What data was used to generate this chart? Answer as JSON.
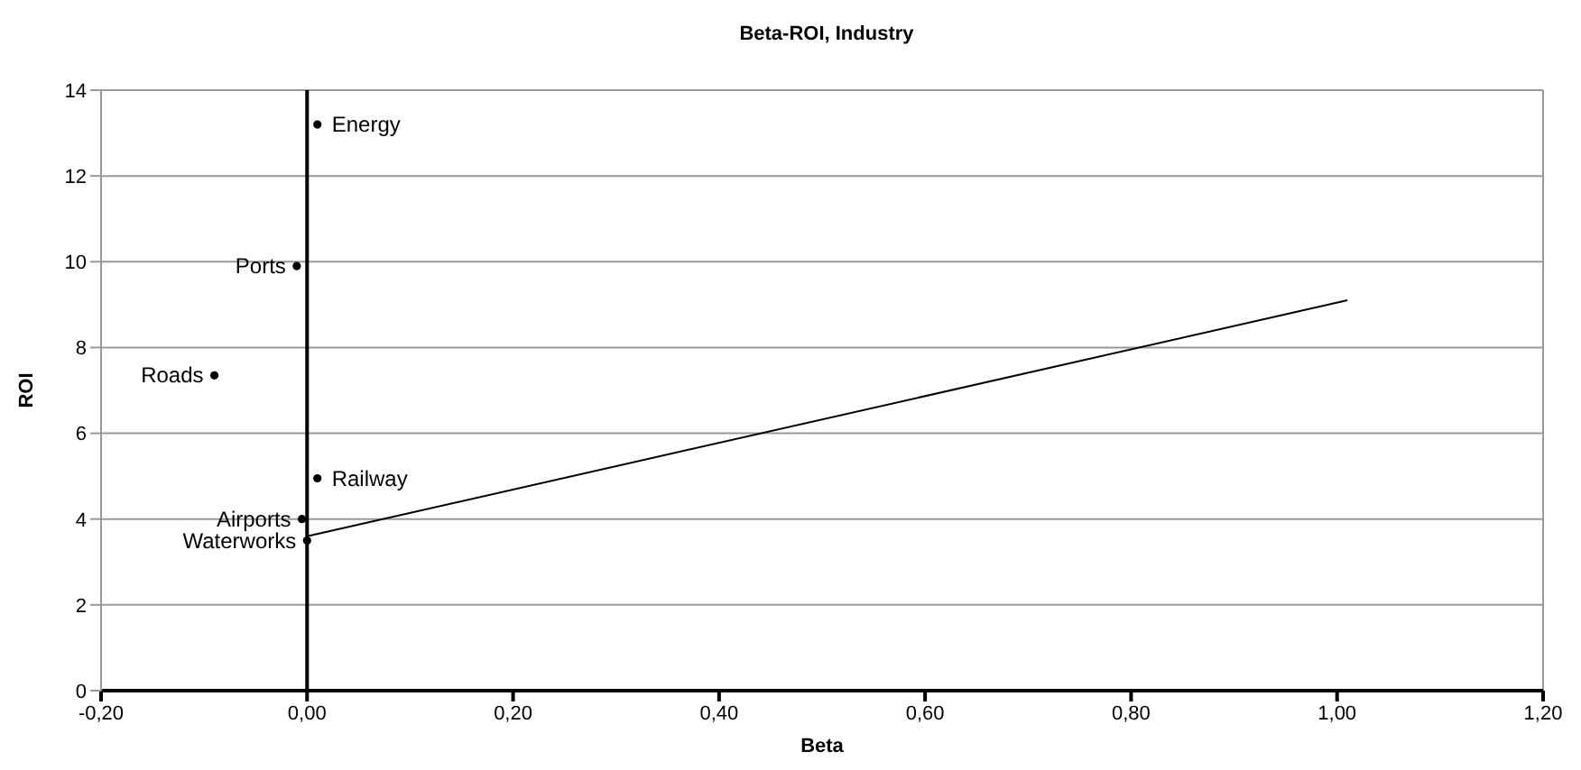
{
  "chart_data": {
    "type": "scatter",
    "title": "Beta-ROI, Industry",
    "xlabel": "Beta",
    "ylabel": "ROI",
    "series": [
      {
        "name": "Energy",
        "color": "#000000",
        "x": [
          0.01
        ],
        "values": [
          13.2
        ]
      },
      {
        "name": "Ports",
        "color": "#000000",
        "x": [
          -0.01
        ],
        "values": [
          9.9
        ]
      },
      {
        "name": "Roads",
        "color": "#000000",
        "x": [
          -0.09
        ],
        "values": [
          7.35
        ]
      },
      {
        "name": "Railway",
        "color": "#000000",
        "x": [
          0.01
        ],
        "values": [
          4.95
        ]
      },
      {
        "name": "Airports",
        "color": "#000000",
        "x": [
          -0.005
        ],
        "values": [
          4.0
        ]
      },
      {
        "name": "Waterworks",
        "color": "#000000",
        "x": [
          0
        ],
        "values": [
          3.5
        ]
      },
      {
        "type": "line",
        "color": "#000000",
        "x": [
          0,
          1.01
        ],
        "values": [
          3.6,
          9.1
        ],
        "marker": "none"
      }
    ],
    "xlim": [
      -0.2,
      1.2
    ],
    "xticks": [
      {
        "value": -0.2,
        "label": "-0,20"
      },
      {
        "value": 0,
        "label": "0,00"
      },
      {
        "value": 0.2,
        "label": "0,20"
      },
      {
        "value": 0.4,
        "label": "0,40"
      },
      {
        "value": 0.6,
        "label": "0,60"
      },
      {
        "value": 0.8,
        "label": "0,80"
      },
      {
        "value": 1,
        "label": "1,00"
      },
      {
        "value": 1.2,
        "label": "1,20"
      }
    ],
    "ylim": [
      0,
      14
    ],
    "yticks": [
      0,
      2,
      4,
      6,
      8,
      10,
      12,
      14
    ],
    "ref_lines": [
      {
        "axis": "x",
        "value": 0,
        "color": "#000000"
      }
    ],
    "grid": "y",
    "marker": "circle"
  }
}
